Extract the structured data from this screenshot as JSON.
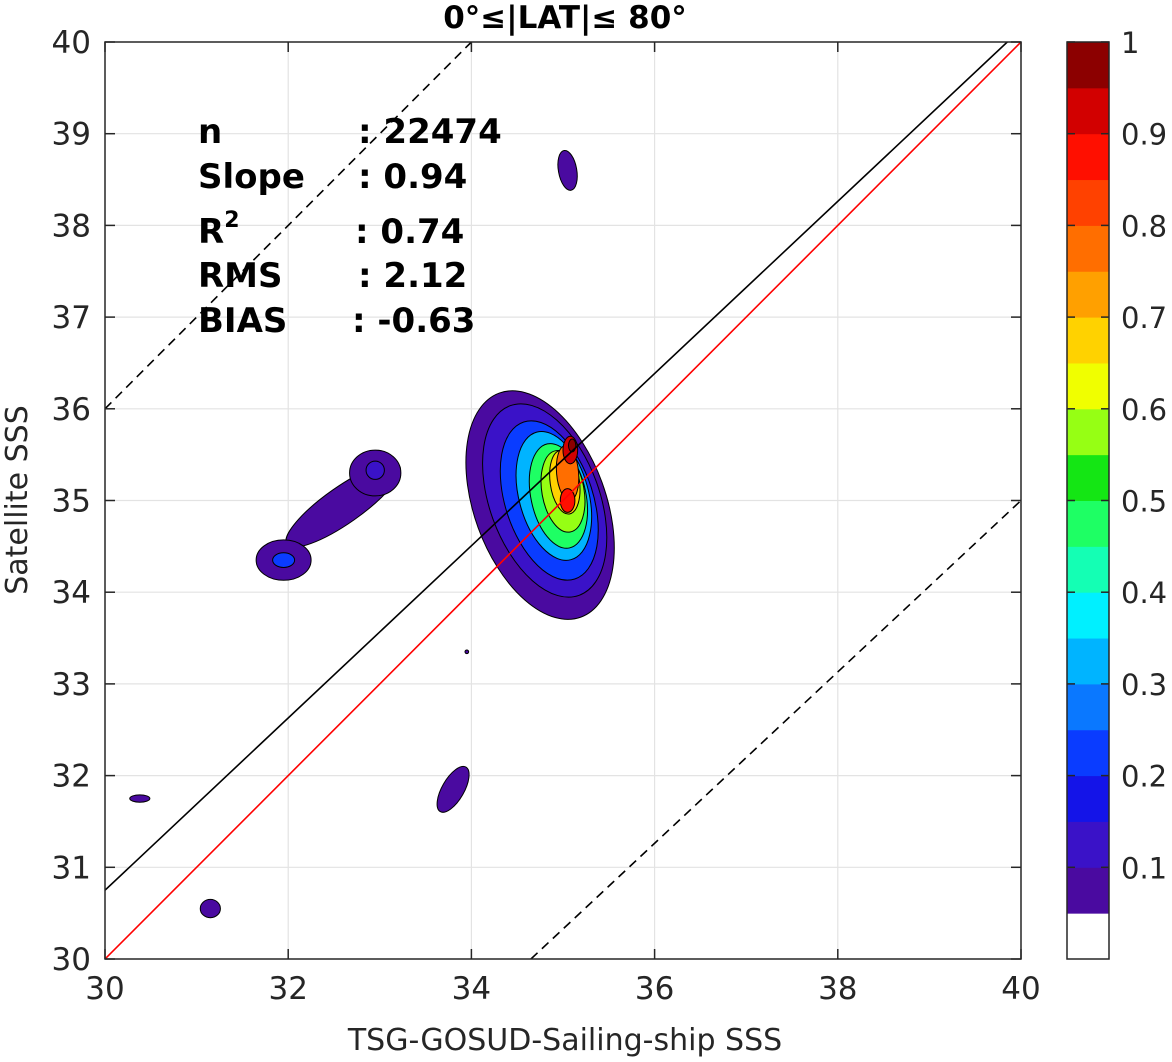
{
  "chart_data": {
    "type": "contour",
    "title": "0°≤|LAT|≤ 80°",
    "xlabel": "TSG-GOSUD-Sailing-ship SSS",
    "ylabel": "Satellite SSS",
    "xlim": [
      30,
      40
    ],
    "ylim": [
      30,
      40
    ],
    "xticks": [
      "30",
      "32",
      "34",
      "36",
      "38",
      "40"
    ],
    "yticks": [
      "30",
      "31",
      "32",
      "33",
      "34",
      "35",
      "36",
      "37",
      "38",
      "39",
      "40"
    ],
    "grid": true,
    "stats": [
      {
        "label": "n",
        "value": ": 22474"
      },
      {
        "label": "Slope",
        "value": ": 0.94"
      },
      {
        "label": "R",
        "sup": "2",
        "value": ": 0.74"
      },
      {
        "label": "RMS",
        "value": ": 2.12"
      },
      {
        "label": "BIAS",
        "value": ": -0.63"
      }
    ],
    "reference_lines": [
      {
        "kind": "one-to-one",
        "color": "#ff0000",
        "style": "solid",
        "points": [
          [
            30,
            30
          ],
          [
            40,
            40
          ]
        ]
      },
      {
        "kind": "regression",
        "color": "#000000",
        "style": "solid",
        "points": [
          [
            30,
            30.75
          ],
          [
            39.85,
            40
          ]
        ]
      },
      {
        "kind": "upper-bound",
        "color": "#000000",
        "style": "dashed",
        "points": [
          [
            30,
            36
          ],
          [
            34,
            40
          ]
        ]
      },
      {
        "kind": "lower-bound",
        "color": "#000000",
        "style": "dashed",
        "points": [
          [
            34.65,
            30
          ],
          [
            40,
            35
          ]
        ]
      }
    ],
    "density_clusters": [
      {
        "center": [
          34.8,
          34.9
        ],
        "peak": 1.0,
        "extent": "main cluster"
      },
      {
        "center": [
          31.95,
          34.35
        ],
        "peak": 0.25
      },
      {
        "center": [
          32.95,
          35.35
        ],
        "peak": 0.2
      },
      {
        "center": [
          35.05,
          38.6
        ],
        "peak": 0.1
      },
      {
        "center": [
          33.8,
          31.85
        ],
        "peak": 0.1
      },
      {
        "center": [
          31.15,
          30.55
        ],
        "peak": 0.1
      },
      {
        "center": [
          30.4,
          31.75
        ],
        "peak": 0.1
      }
    ],
    "colorbar": {
      "ticks": [
        "0.1",
        "0.2",
        "0.3",
        "0.4",
        "0.5",
        "0.6",
        "0.7",
        "0.8",
        "0.9",
        "1"
      ],
      "tick_values": [
        0.1,
        0.2,
        0.3,
        0.4,
        0.5,
        0.6,
        0.7,
        0.8,
        0.9,
        1.0
      ],
      "range": [
        0,
        1
      ],
      "colors": [
        "#ffffff",
        "#4a0aa0",
        "#3a12c8",
        "#1414e8",
        "#0a3cff",
        "#0a78ff",
        "#00b4ff",
        "#00f0ff",
        "#14ffb4",
        "#1eff64",
        "#14e614",
        "#96ff14",
        "#f0ff00",
        "#ffd200",
        "#ffa000",
        "#ff6e00",
        "#ff4100",
        "#ff0f00",
        "#d20000",
        "#8c0000"
      ]
    }
  }
}
